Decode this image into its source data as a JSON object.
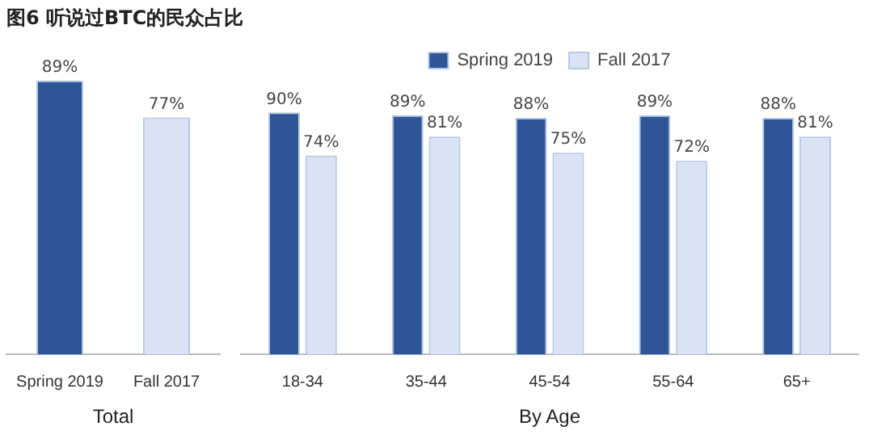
{
  "chart_data": [
    {
      "type": "bar",
      "title": "图6 听说过BTC的民众占比",
      "categories": [
        "Spring 2019",
        "Fall 2017"
      ],
      "values": [
        89,
        77
      ],
      "value_labels": [
        "89%",
        "77%"
      ],
      "colors": [
        "#2f5597",
        "#dae3f3"
      ],
      "xlabel": "Total"
    },
    {
      "type": "bar",
      "categories": [
        "18-34",
        "35-44",
        "45-54",
        "55-64",
        "65+"
      ],
      "xlabel": "By Age",
      "legend": "top",
      "series": [
        {
          "name": "Spring 2019",
          "color": "#2f5597",
          "values": [
            90,
            89,
            88,
            89,
            88
          ],
          "value_labels": [
            "90%",
            "89%",
            "88%",
            "89%",
            "88%"
          ]
        },
        {
          "name": "Fall 2017",
          "color": "#dae3f3",
          "values": [
            74,
            81,
            75,
            72,
            81
          ],
          "value_labels": [
            "74%",
            "81%",
            "75%",
            "72%",
            "81%"
          ]
        }
      ]
    }
  ]
}
